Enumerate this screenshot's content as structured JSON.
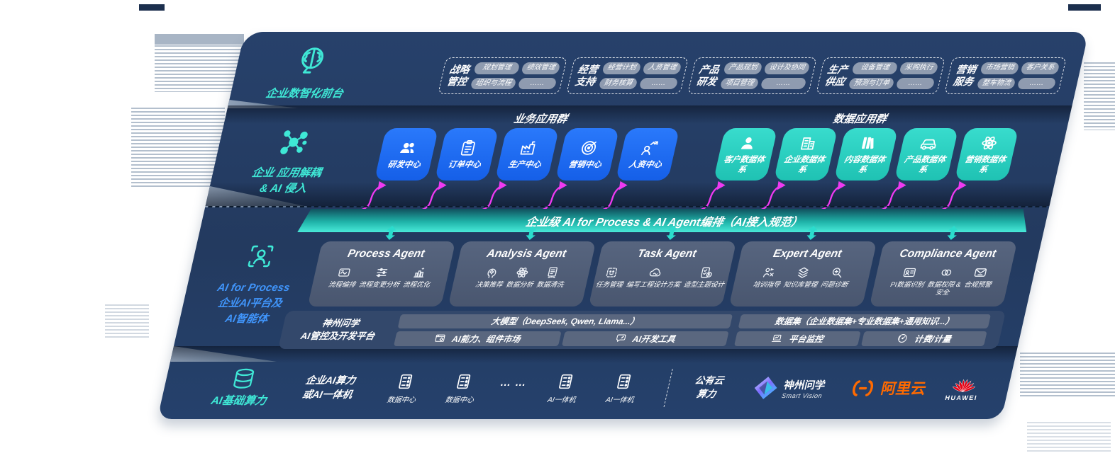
{
  "front_office": {
    "label": "企业数智化前台",
    "groups": [
      {
        "name": "战略管控",
        "chips": [
          "规划管理",
          "绩效管理",
          "组织与流程",
          "……"
        ]
      },
      {
        "name": "经营支持",
        "chips": [
          "经营计划",
          "人资管理",
          "财务核算",
          "……"
        ]
      },
      {
        "name": "产品研发",
        "chips": [
          "产品规划",
          "设计及协同",
          "项目管理",
          "……"
        ]
      },
      {
        "name": "生产供应",
        "chips": [
          "设备管理",
          "采购执行",
          "预测与订单",
          "……"
        ]
      },
      {
        "name": "营销服务",
        "chips": [
          "市场营销",
          "客户关系",
          "整车物流",
          "……"
        ]
      }
    ]
  },
  "app_layer": {
    "label_line1": "企业 应用解耦",
    "label_line2": "& AI 侵入",
    "business_title": "业务应用群",
    "business_apps": [
      {
        "name": "研发中心",
        "icon": "people-icon"
      },
      {
        "name": "订单中心",
        "icon": "clipboard-icon"
      },
      {
        "name": "生产中心",
        "icon": "factory-icon"
      },
      {
        "name": "营销中心",
        "icon": "target-icon"
      },
      {
        "name": "人资中心",
        "icon": "person-chart-icon"
      }
    ],
    "data_title": "数据应用群",
    "data_apps": [
      {
        "name": "客户数据体系",
        "icon": "user-icon"
      },
      {
        "name": "企业数据体系",
        "icon": "building-icon"
      },
      {
        "name": "内容数据体系",
        "icon": "books-icon"
      },
      {
        "name": "产品数据体系",
        "icon": "car-icon"
      },
      {
        "name": "营销数据体系",
        "icon": "atom-icon"
      }
    ]
  },
  "orchestration": {
    "banner": "企业级 AI for Process & AI Agent编排（AI接入规范）"
  },
  "agent_layer": {
    "label_title": "AI for Process",
    "label_line2": "企业AI平台及",
    "label_line3": "AI智能体",
    "agents": [
      {
        "title": "Process Agent",
        "functions": [
          {
            "icon": "flow-icon",
            "label": "流程编排"
          },
          {
            "icon": "sliders-icon",
            "label": "流程变更分析"
          },
          {
            "icon": "chart-up-icon",
            "label": "流程优化"
          }
        ]
      },
      {
        "title": "Analysis Agent",
        "functions": [
          {
            "icon": "head-gear-icon",
            "label": "决策推荐"
          },
          {
            "icon": "atom-icon",
            "label": "数据分析"
          },
          {
            "icon": "data-clean-icon",
            "label": "数据清洗"
          }
        ]
      },
      {
        "title": "Task Agent",
        "functions": [
          {
            "icon": "robot-icon",
            "label": "任务管理"
          },
          {
            "icon": "cloud-gear-icon",
            "label": "编写工程设计方案"
          },
          {
            "icon": "checklist-icon",
            "label": "造型主题设计"
          }
        ]
      },
      {
        "title": "Expert Agent",
        "functions": [
          {
            "icon": "teach-icon",
            "label": "培训指导"
          },
          {
            "icon": "layers-icon",
            "label": "知识库管理"
          },
          {
            "icon": "diagnose-icon",
            "label": "问题诊断"
          }
        ]
      },
      {
        "title": "Compliance Agent",
        "functions": [
          {
            "icon": "id-card-icon",
            "label": "PI数据识别"
          },
          {
            "icon": "link-shield-icon",
            "label": "数据权限 &\n安全"
          },
          {
            "icon": "mail-check-icon",
            "label": "合规预警"
          }
        ]
      }
    ]
  },
  "platform": {
    "label_line1": "神州问学",
    "label_line2": "AI管控及开发平台",
    "model_bar": "大模型（DeepSeek, Qwen, Llama...）",
    "left_cells": [
      {
        "icon": "window-gear-icon",
        "label": "AI能力、组件市场"
      },
      {
        "icon": "chat-tool-icon",
        "label": "AI开发工具"
      }
    ],
    "dataset_bar": "数据集（企业数据集+专业数据集+通用知识...）",
    "right_cells": [
      {
        "icon": "laptop-chart-icon",
        "label": "平台监控"
      },
      {
        "icon": "gauge-icon",
        "label": "计费/计量"
      }
    ]
  },
  "compute_layer": {
    "label": "AI基础算力",
    "group_label_line1": "企业AI算力",
    "group_label_line2": "或AI一体机",
    "nodes_left": [
      {
        "icon": "server-icon",
        "label": "数据中心"
      },
      {
        "icon": "server-icon",
        "label": "数据中心"
      }
    ],
    "ellipsis": "… …",
    "nodes_right": [
      {
        "icon": "server-icon",
        "label": "AI一体机"
      },
      {
        "icon": "server-icon",
        "label": "AI一体机"
      }
    ],
    "public_cloud_line1": "公有云",
    "public_cloud_line2": "算力",
    "smartvision": {
      "name": "神州问学",
      "sub": "Smart Vision"
    },
    "aliyun": {
      "name": "阿里云"
    },
    "huawei": {
      "name": "HUAWEI"
    }
  },
  "colors": {
    "accent_teal": "#3FE8D6",
    "accent_blue": "#4095FB",
    "card_blue": "#1C6CF2",
    "card_teal": "#2FD6C6",
    "magenta": "#EF3AF2",
    "banner_teal": "#2ED9CC",
    "alibaba_orange": "#FF6A00",
    "huawei_red": "#E60012",
    "panel_navy": "#243B61"
  }
}
